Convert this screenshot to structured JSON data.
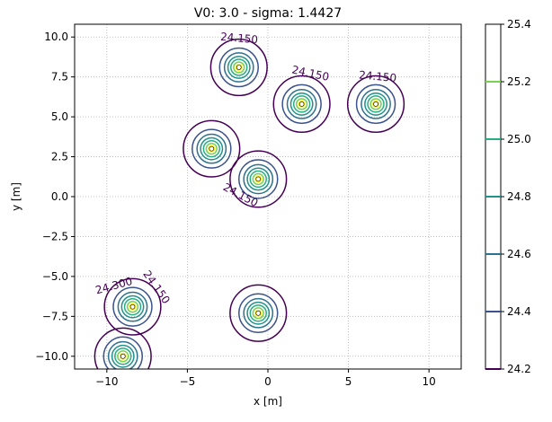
{
  "chart_data": {
    "type": "contour",
    "title": "V0: 3.0 - sigma: 1.4427",
    "xlabel": "x [m]",
    "ylabel": "y [m]",
    "xlim": [
      -12,
      12
    ],
    "ylim": [
      -10.8,
      10.8
    ],
    "xticks": [
      -10,
      -5,
      0,
      5,
      10
    ],
    "xtick_labels": [
      "−10",
      "−5",
      "0",
      "5",
      "10"
    ],
    "yticks": [
      10,
      7.5,
      5,
      2.5,
      0,
      -2.5,
      -5,
      -7.5,
      -10
    ],
    "ytick_labels": [
      "10.0",
      "7.5",
      "5.0",
      "2.5",
      "0.0",
      "−2.5",
      "−5.0",
      "−7.5",
      "−10.0"
    ],
    "grid": true,
    "colormap": "viridis",
    "sources": [
      {
        "x": -1.8,
        "y": 8.1
      },
      {
        "x": 2.1,
        "y": 5.8
      },
      {
        "x": 6.7,
        "y": 5.8
      },
      {
        "x": -3.5,
        "y": 3.0
      },
      {
        "x": -0.6,
        "y": 1.1
      },
      {
        "x": -8.4,
        "y": -6.9
      },
      {
        "x": -9.0,
        "y": -10.0
      },
      {
        "x": -0.6,
        "y": -7.3
      }
    ],
    "contour_labels": [
      {
        "text": "24.150",
        "x": -1.8,
        "y": 9.7,
        "rot": 5
      },
      {
        "text": "24.150",
        "x": 2.6,
        "y": 7.5,
        "rot": 12
      },
      {
        "text": "24.150",
        "x": 6.8,
        "y": 7.3,
        "rot": 5
      },
      {
        "text": "24.150",
        "x": -1.8,
        "y": -0.1,
        "rot": 28
      },
      {
        "text": "24.300",
        "x": -9.5,
        "y": -5.8,
        "rot": -15
      },
      {
        "text": "24.150",
        "x": -7.1,
        "y": -5.8,
        "rot": 55
      }
    ],
    "colorbar": {
      "min": 24.2,
      "max": 25.4,
      "ticks": [
        24.2,
        24.4,
        24.6,
        24.8,
        25.0,
        25.2,
        25.4
      ],
      "tick_labels": [
        "24.2",
        "24.4",
        "24.6",
        "24.8",
        "25.0",
        "25.2",
        "25.4"
      ],
      "colors": [
        "#440154",
        "#3b528b",
        "#2c728e",
        "#21918c",
        "#28ae80",
        "#7ad151",
        "#fde725"
      ]
    }
  }
}
